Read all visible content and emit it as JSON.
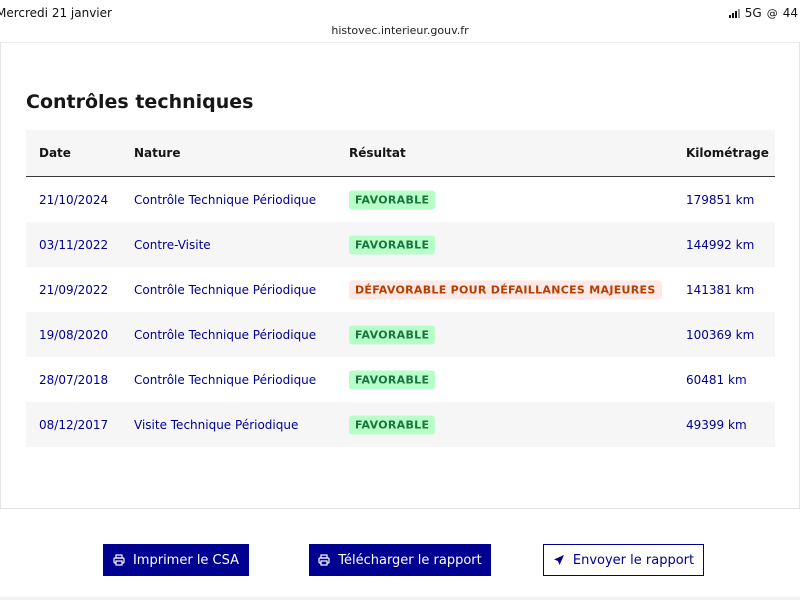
{
  "status_bar": {
    "date": "Mercredi 21 janvier",
    "network": "5G",
    "battery": "44"
  },
  "browser": {
    "url": "histovec.interieur.gouv.fr"
  },
  "section": {
    "title": "Contrôles techniques"
  },
  "table": {
    "headers": [
      "Date",
      "Nature",
      "Résultat",
      "Kilométrage"
    ],
    "rows": [
      {
        "date": "21/10/2024",
        "nature": "Contrôle Technique Périodique",
        "result": "FAVORABLE",
        "status": "ok",
        "km": "179851 km"
      },
      {
        "date": "03/11/2022",
        "nature": "Contre-Visite",
        "result": "FAVORABLE",
        "status": "ok",
        "km": "144992 km"
      },
      {
        "date": "21/09/2022",
        "nature": "Contrôle Technique Périodique",
        "result": "DÉFAVORABLE POUR DÉFAILLANCES MAJEURES",
        "status": "ko",
        "km": "141381 km"
      },
      {
        "date": "19/08/2020",
        "nature": "Contrôle Technique Périodique",
        "result": "FAVORABLE",
        "status": "ok",
        "km": "100369 km"
      },
      {
        "date": "28/07/2018",
        "nature": "Contrôle Technique Périodique",
        "result": "FAVORABLE",
        "status": "ok",
        "km": "60481 km"
      },
      {
        "date": "08/12/2017",
        "nature": "Visite Technique Périodique",
        "result": "FAVORABLE",
        "status": "ok",
        "km": "49399 km"
      }
    ]
  },
  "actions": {
    "print_label": "Imprimer le CSA",
    "print_icon": "printer-icon",
    "download_label": "Télécharger le rapport",
    "download_icon": "printer-icon",
    "send_label": "Envoyer le rapport",
    "send_icon": "send-icon"
  },
  "colors": {
    "primary": "#000091",
    "favorable_bg": "#b8fec9",
    "favorable_text": "#18753c",
    "unfavorable_bg": "#ffe9e6",
    "unfavorable_text": "#b34000"
  }
}
